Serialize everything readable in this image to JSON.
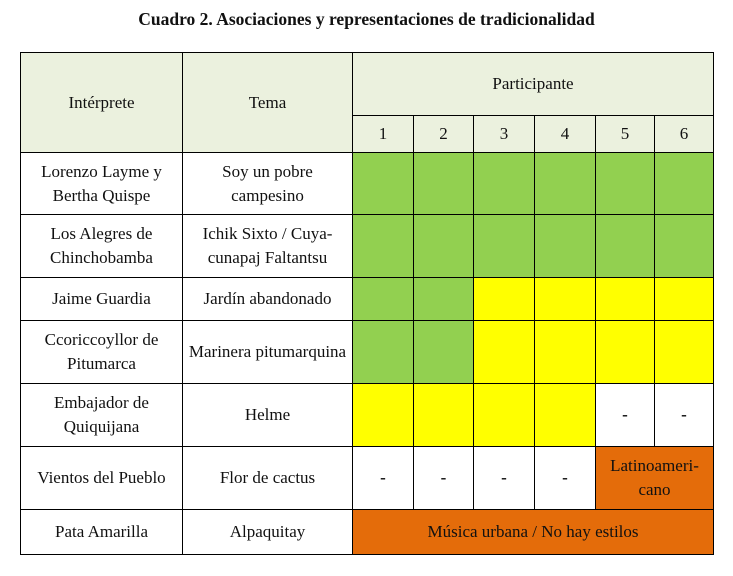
{
  "title": "Cuadro 2. Asociaciones y representaciones de tradicionalidad",
  "headers": {
    "interprete": "Intérprete",
    "tema": "Tema",
    "participante": "Participante",
    "numbers": [
      "1",
      "2",
      "3",
      "4",
      "5",
      "6"
    ]
  },
  "colors": {
    "header": "#ebf1de",
    "green": "#92d050",
    "yellow": "#ffff00",
    "orange": "#e46c0a",
    "white": "#ffffff"
  },
  "rows": [
    {
      "interprete": "Lorenzo Layme y Bertha Quispe",
      "tema": "Soy un pobre campesino",
      "cells": [
        "green",
        "green",
        "green",
        "green",
        "green",
        "green"
      ]
    },
    {
      "interprete": "Los Alegres de Chinchobamba",
      "tema": "Ichik Sixto / Cuya-cunapaj Faltantsu",
      "cells": [
        "green",
        "green",
        "green",
        "green",
        "green",
        "green"
      ]
    },
    {
      "interprete": "Jaime Guardia",
      "tema": "Jardín abandonado",
      "cells": [
        "green",
        "green",
        "yellow",
        "yellow",
        "yellow",
        "yellow"
      ]
    },
    {
      "interprete": "Ccoriccoyllor de Pitumarca",
      "tema": "Marinera pitumarquina",
      "cells": [
        "green",
        "green",
        "yellow",
        "yellow",
        "yellow",
        "yellow"
      ]
    },
    {
      "interprete": "Embajador de Quiquijana",
      "tema": "Helme",
      "cells": [
        "yellow",
        "yellow",
        "yellow",
        "yellow"
      ],
      "dashes": [
        "-",
        "-"
      ]
    },
    {
      "interprete": "Vientos del Pueblo",
      "tema": "Flor de cactus",
      "dashes": [
        "-",
        "-",
        "-",
        "-"
      ],
      "merged": "Latinoameri-cano"
    },
    {
      "interprete": "Pata Amarilla",
      "tema": "Alpaquitay",
      "merged": "Música urbana / No hay estilos"
    }
  ]
}
